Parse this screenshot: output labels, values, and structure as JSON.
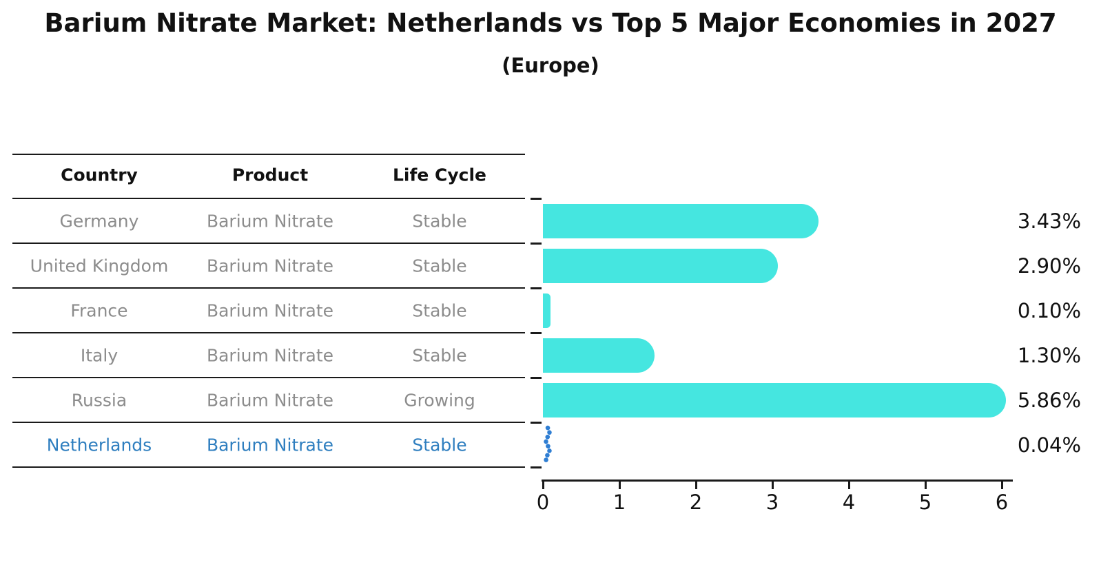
{
  "chart_data": {
    "type": "bar",
    "orientation": "horizontal",
    "title": "Barium Nitrate Market: Netherlands vs Top 5 Major Economies in 2027",
    "subtitle": "(Europe)",
    "categories": [
      "Germany",
      "United Kingdom",
      "France",
      "Italy",
      "Russia",
      "Netherlands"
    ],
    "values": [
      3.43,
      2.9,
      0.1,
      1.3,
      5.86,
      0.04
    ],
    "value_labels": [
      "3.43%",
      "2.90%",
      "0.10%",
      "1.30%",
      "5.86%",
      "0.04%"
    ],
    "units": "%",
    "x_ticks": [
      0,
      1,
      2,
      3,
      4,
      5,
      6
    ],
    "xlim": [
      0,
      6.16
    ],
    "grid": false,
    "legend": "none",
    "bar_color": "#45e6e0",
    "highlight": {
      "index": 5,
      "category": "Netherlands",
      "style": "blue-dotted-marker",
      "color": "#2f7ed3"
    }
  },
  "table": {
    "headers": [
      "Country",
      "Product",
      "Life Cycle"
    ],
    "rows": [
      {
        "country": "Germany",
        "product": "Barium Nitrate",
        "life_cycle": "Stable",
        "highlight": false
      },
      {
        "country": "United Kingdom",
        "product": "Barium Nitrate",
        "life_cycle": "Stable",
        "highlight": false
      },
      {
        "country": "France",
        "product": "Barium Nitrate",
        "life_cycle": "Stable",
        "highlight": false
      },
      {
        "country": "Italy",
        "product": "Barium Nitrate",
        "life_cycle": "Stable",
        "highlight": false
      },
      {
        "country": "Russia",
        "product": "Barium Nitrate",
        "life_cycle": "Growing",
        "highlight": false
      },
      {
        "country": "Netherlands",
        "product": "Barium Nitrate",
        "life_cycle": "Stable",
        "highlight": true
      }
    ]
  },
  "colors": {
    "bar": "#45e6e0",
    "highlight_text": "#2e7ebf",
    "muted_text": "#8c8c8c",
    "text": "#111111",
    "rule": "#1a1a1a"
  }
}
